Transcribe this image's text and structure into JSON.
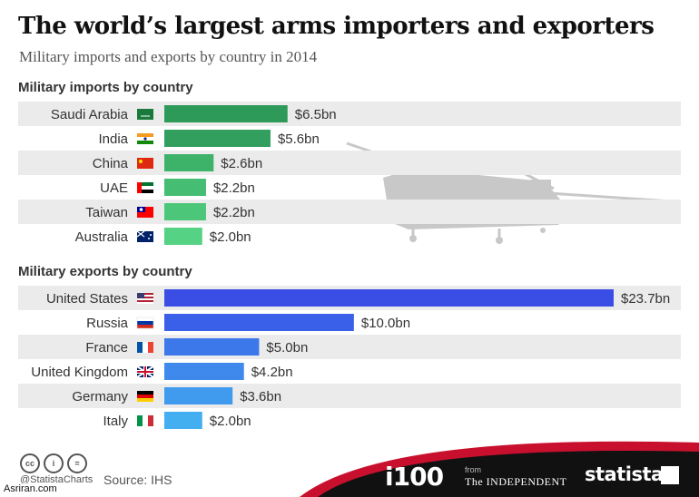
{
  "header": {
    "title": "The world’s largest arms importers and exporters",
    "subtitle": "Military imports and exports by country in 2014"
  },
  "chart_data": [
    {
      "type": "bar",
      "orientation": "horizontal",
      "title": "Military imports by country",
      "categories": [
        "Saudi Arabia",
        "India",
        "China",
        "UAE",
        "Taiwan",
        "Australia"
      ],
      "values": [
        6.5,
        5.6,
        2.6,
        2.2,
        2.2,
        2.0
      ],
      "value_labels": [
        "$6.5bn",
        "$5.6bn",
        "$2.6bn",
        "$2.2bn",
        "$2.2bn",
        "$2.0bn"
      ],
      "units": "$bn",
      "colors": [
        "#2e9a5a",
        "#339f5f",
        "#3db36a",
        "#45bd72",
        "#4cc77a",
        "#55d283"
      ],
      "flags": [
        "saudi-arabia-flag",
        "india-flag",
        "china-flag",
        "uae-flag",
        "taiwan-flag",
        "australia-flag"
      ],
      "scale_max": 23.7
    },
    {
      "type": "bar",
      "orientation": "horizontal",
      "title": "Military exports by country",
      "categories": [
        "United States",
        "Russia",
        "France",
        "United Kingdom",
        "Germany",
        "Italy"
      ],
      "values": [
        23.7,
        10.0,
        5.0,
        4.2,
        3.6,
        2.0
      ],
      "value_labels": [
        "$23.7bn",
        "$10.0bn",
        "$5.0bn",
        "$4.2bn",
        "$3.6bn",
        "$2.0bn"
      ],
      "units": "$bn",
      "colors": [
        "#3a4ee6",
        "#3a5fe8",
        "#3d78ea",
        "#3f88ec",
        "#409aee",
        "#43aef0"
      ],
      "flags": [
        "usa-flag",
        "russia-flag",
        "france-flag",
        "uk-flag",
        "germany-flag",
        "italy-flag"
      ],
      "scale_max": 23.7
    }
  ],
  "footer": {
    "cc_icons": [
      "cc",
      "i",
      "="
    ],
    "handle": "@StatistaCharts",
    "source": "Source: IHS",
    "watermark": "Asriran.com",
    "brand_i100": "i100",
    "brand_from": "from",
    "brand_independent": "The INDEPENDENT",
    "brand_statista": "statista"
  }
}
